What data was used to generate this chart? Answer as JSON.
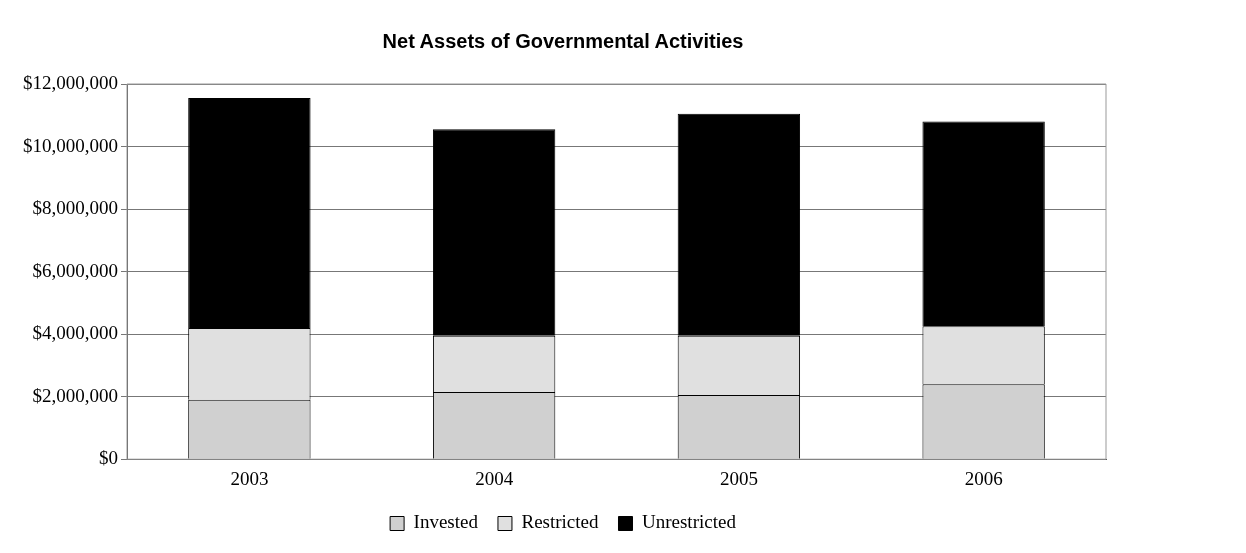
{
  "chart_data": {
    "type": "bar",
    "title": "Net Assets of Governmental Activities",
    "categories": [
      "2003",
      "2004",
      "2005",
      "2006"
    ],
    "stacked": true,
    "series": [
      {
        "name": "Invested",
        "color": "#d0d0d0",
        "values": [
          1900000,
          2150000,
          2050000,
          2400000
        ]
      },
      {
        "name": "Restricted",
        "color": "#e0e0e0",
        "values": [
          2300000,
          1800000,
          1900000,
          1850000
        ]
      },
      {
        "name": "Unrestricted",
        "color": "#000000",
        "values": [
          7350000,
          6600000,
          7100000,
          6550000
        ]
      }
    ],
    "ylim": [
      0,
      12000000
    ],
    "yticks": [
      {
        "value": 0,
        "label": "$0"
      },
      {
        "value": 2000000,
        "label": "$2,000,000"
      },
      {
        "value": 4000000,
        "label": "$4,000,000"
      },
      {
        "value": 6000000,
        "label": "$6,000,000"
      },
      {
        "value": 8000000,
        "label": "$8,000,000"
      },
      {
        "value": 10000000,
        "label": "$10,000,000"
      },
      {
        "value": 12000000,
        "label": "$12,000,000"
      }
    ],
    "grid": "y",
    "legend": "bottom"
  }
}
